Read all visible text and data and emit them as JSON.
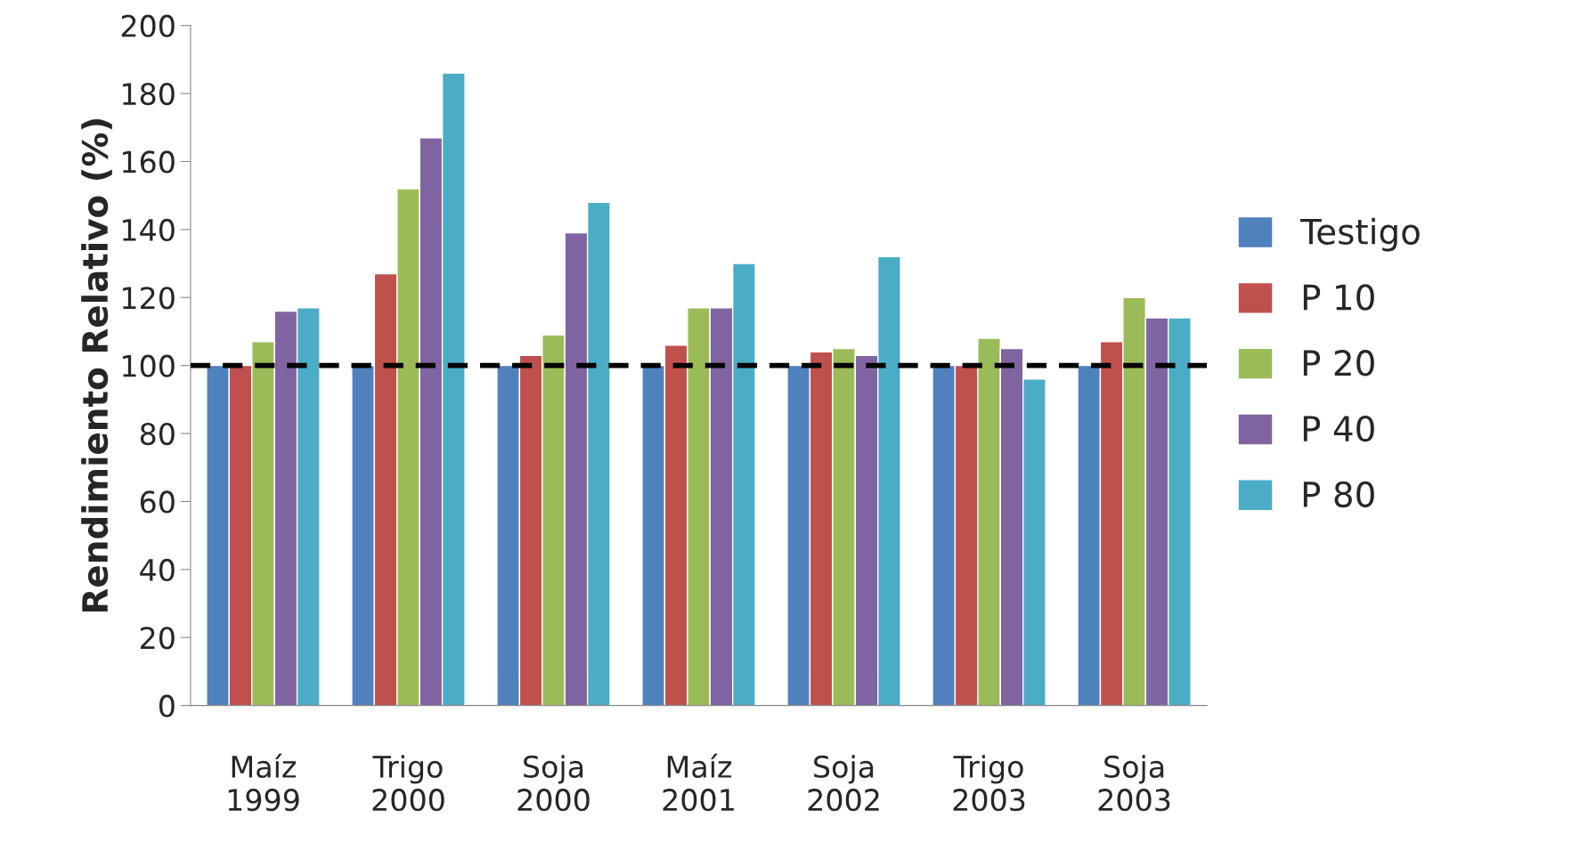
{
  "chart_data": {
    "type": "bar",
    "ylabel": "Rendimiento Relativo (%)",
    "categories": [
      "Maíz\n1999",
      "Trigo\n2000",
      "Soja\n2000",
      "Maíz\n2001",
      "Soja\n2002",
      "Trigo\n2003",
      "Soja\n2003"
    ],
    "series": [
      {
        "name": "Testigo",
        "color": "#4f81bd",
        "values": [
          100,
          100,
          100,
          100,
          100,
          100,
          100
        ]
      },
      {
        "name": "P 10",
        "color": "#c0504d",
        "values": [
          100,
          127,
          103,
          106,
          104,
          100,
          107
        ]
      },
      {
        "name": "P 20",
        "color": "#9bbb59",
        "values": [
          107,
          152,
          109,
          117,
          105,
          108,
          120
        ]
      },
      {
        "name": "P 40",
        "color": "#8064a2",
        "values": [
          116,
          167,
          139,
          117,
          103,
          105,
          114
        ]
      },
      {
        "name": "P 80",
        "color": "#4bacc6",
        "values": [
          117,
          186,
          148,
          130,
          132,
          96,
          114
        ]
      }
    ],
    "ylim": [
      0,
      200
    ],
    "yticks": [
      0,
      20,
      40,
      60,
      80,
      100,
      120,
      140,
      160,
      180,
      200
    ],
    "ref_lines": [
      {
        "axis": "y",
        "value": 100,
        "color": "#000000",
        "line_style": "dashed"
      }
    ],
    "grid": false,
    "legend": "right"
  }
}
